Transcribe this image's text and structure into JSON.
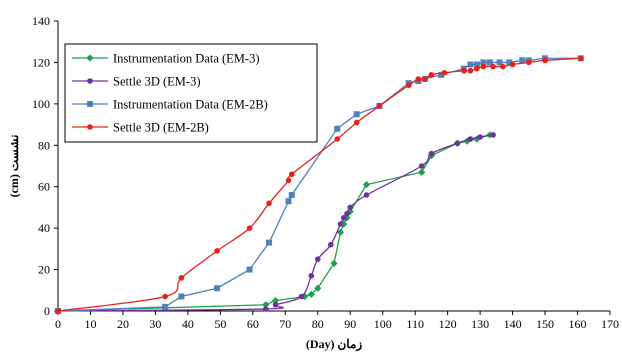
{
  "chart_data": {
    "type": "line",
    "xlabel": "زمان (Day)",
    "ylabel": "نشست (cm)",
    "xlim": [
      0,
      170
    ],
    "ylim": [
      0,
      140
    ],
    "xticks": [
      "0",
      "10",
      "20",
      "30",
      "40",
      "50",
      "60",
      "70",
      "80",
      "90",
      "100",
      "110",
      "120",
      "130",
      "140",
      "150",
      "160",
      "170"
    ],
    "yticks": [
      "0",
      "20",
      "40",
      "60",
      "80",
      "100",
      "120",
      "140"
    ],
    "grid": false,
    "legend_position": "top-left",
    "series": [
      {
        "name": "Instrumentation Data (EM-3)",
        "color": "#1aa34a",
        "marker": "diamond",
        "smooth": false,
        "points": [
          [
            0,
            0
          ],
          [
            64,
            3
          ],
          [
            67,
            5
          ],
          [
            76,
            7
          ],
          [
            78,
            8
          ],
          [
            80,
            11
          ],
          [
            85,
            23
          ],
          [
            87,
            38
          ],
          [
            88,
            42
          ],
          [
            89,
            45
          ],
          [
            90,
            48
          ],
          [
            95,
            61
          ],
          [
            112,
            67
          ],
          [
            115,
            75
          ],
          [
            123,
            81
          ],
          [
            126,
            82
          ],
          [
            129,
            83
          ],
          [
            133,
            85
          ]
        ]
      },
      {
        "name": "Settle 3D (EM-3)",
        "color": "#7030a0",
        "marker": "circle",
        "smooth": true,
        "points": [
          [
            0,
            0
          ],
          [
            64,
            1
          ],
          [
            67,
            3
          ],
          [
            75,
            7
          ],
          [
            78,
            17
          ],
          [
            80,
            25
          ],
          [
            84,
            32
          ],
          [
            87,
            42
          ],
          [
            88,
            45
          ],
          [
            89,
            47
          ],
          [
            90,
            50
          ],
          [
            95,
            56
          ],
          [
            112,
            70
          ],
          [
            115,
            76
          ],
          [
            123,
            81
          ],
          [
            127,
            83
          ],
          [
            130,
            84
          ],
          [
            134,
            85
          ]
        ]
      },
      {
        "name": "Instrumentation Data (EM-2B)",
        "color": "#4f81bd",
        "marker": "square",
        "smooth": false,
        "points": [
          [
            0,
            0
          ],
          [
            33,
            2
          ],
          [
            38,
            7
          ],
          [
            49,
            11
          ],
          [
            59,
            20
          ],
          [
            65,
            33
          ],
          [
            71,
            53
          ],
          [
            72,
            56
          ],
          [
            86,
            88
          ],
          [
            92,
            95
          ],
          [
            99,
            99
          ],
          [
            108,
            110
          ],
          [
            111,
            111
          ],
          [
            113,
            112
          ],
          [
            118,
            114
          ],
          [
            125,
            117
          ],
          [
            127,
            119
          ],
          [
            129,
            119
          ],
          [
            131,
            120
          ],
          [
            133,
            120
          ],
          [
            136,
            120
          ],
          [
            139,
            120
          ],
          [
            143,
            121
          ],
          [
            145,
            121
          ],
          [
            150,
            122
          ],
          [
            161,
            122
          ]
        ]
      },
      {
        "name": "Settle 3D (EM-2B)",
        "color": "#e8211b",
        "marker": "circle",
        "smooth": true,
        "points": [
          [
            0,
            0
          ],
          [
            33,
            7
          ],
          [
            38,
            16
          ],
          [
            49,
            29
          ],
          [
            59,
            40
          ],
          [
            65,
            52
          ],
          [
            71,
            63
          ],
          [
            72,
            66
          ],
          [
            86,
            83
          ],
          [
            92,
            91
          ],
          [
            99,
            99
          ],
          [
            108,
            109
          ],
          [
            111,
            112
          ],
          [
            113,
            112
          ],
          [
            115,
            114
          ],
          [
            119,
            115
          ],
          [
            125,
            116
          ],
          [
            127,
            116
          ],
          [
            129,
            117
          ],
          [
            131,
            118
          ],
          [
            134,
            118
          ],
          [
            137,
            118
          ],
          [
            140,
            119
          ],
          [
            145,
            120
          ],
          [
            150,
            121
          ],
          [
            161,
            122
          ]
        ]
      }
    ]
  }
}
